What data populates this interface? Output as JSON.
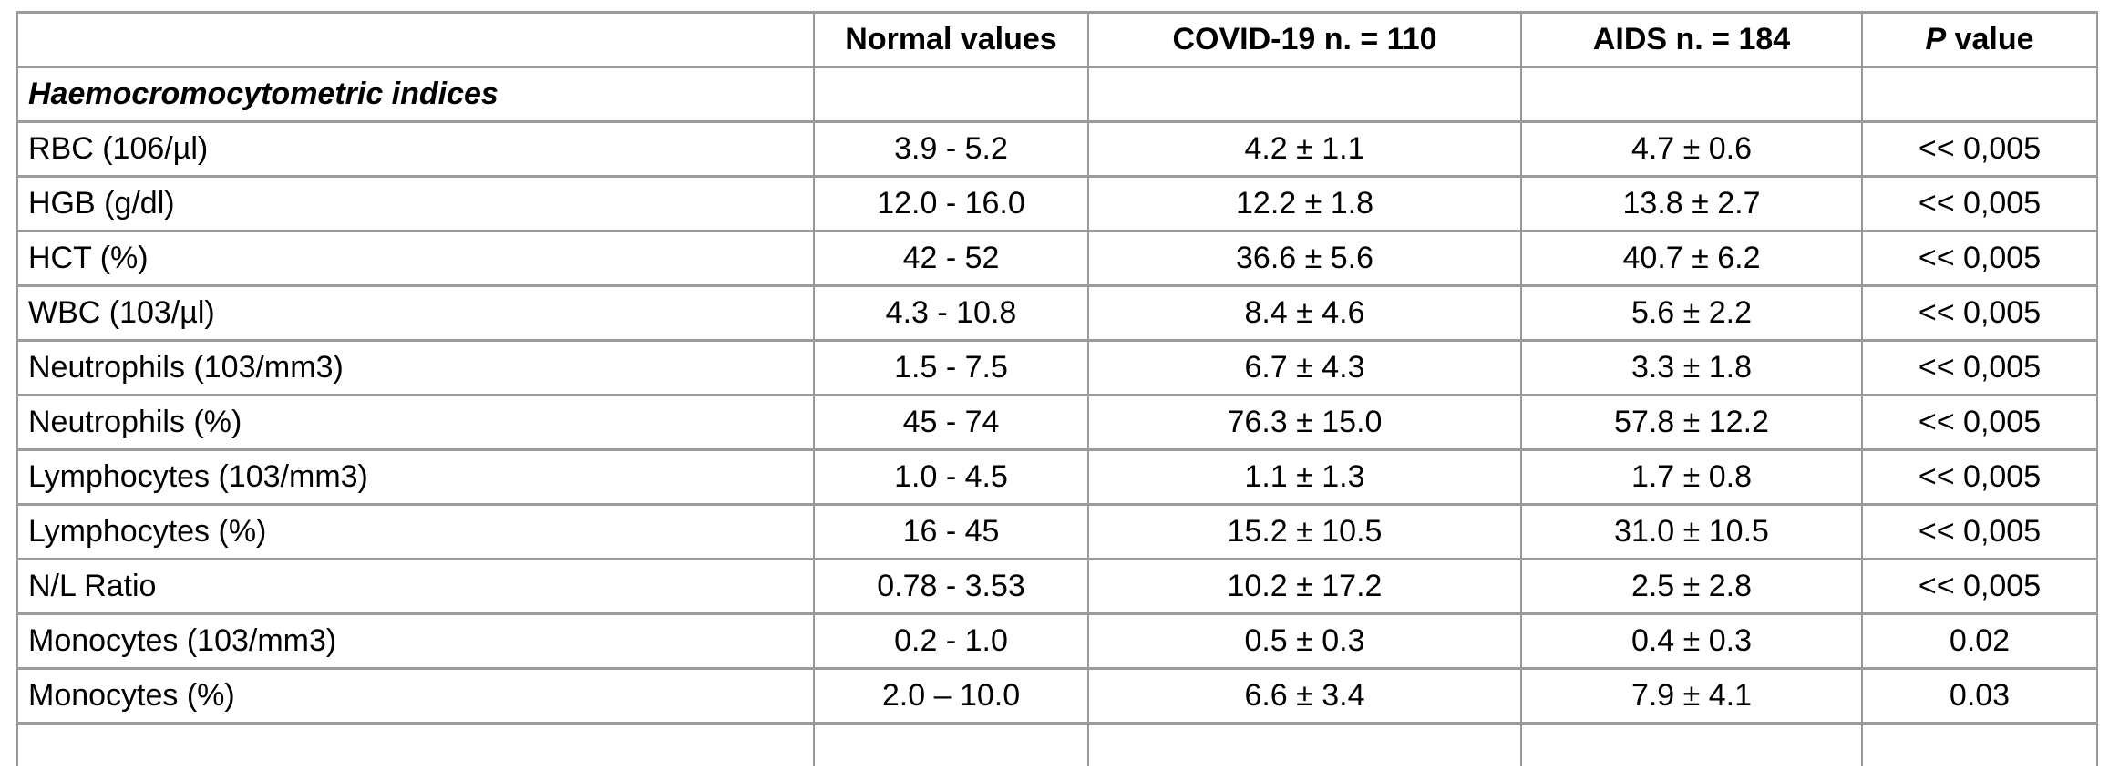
{
  "table": {
    "header": {
      "parameter": "",
      "normal_values": "Normal values",
      "covid": "COVID-19 n. = 110",
      "aids": "AIDS n. = 184",
      "p_italic": "P",
      "p_rest": " value"
    },
    "section_title": "Haemocromocytometric indices",
    "rows": [
      {
        "parameter": "RBC (106/µl)",
        "normal": "3.9 - 5.2",
        "covid": "4.2 ± 1.1",
        "aids": "4.7 ± 0.6",
        "p": "<< 0,005"
      },
      {
        "parameter": "HGB (g/dl)",
        "normal": "12.0 - 16.0",
        "covid": "12.2 ± 1.8",
        "aids": "13.8 ± 2.7",
        "p": "<< 0,005"
      },
      {
        "parameter": "HCT (%)",
        "normal": "42 - 52",
        "covid": "36.6 ± 5.6",
        "aids": "40.7 ± 6.2",
        "p": "<< 0,005"
      },
      {
        "parameter": "WBC (103/µl)",
        "normal": "4.3 - 10.8",
        "covid": "8.4 ± 4.6",
        "aids": "5.6 ± 2.2",
        "p": "<< 0,005"
      },
      {
        "parameter": "Neutrophils (103/mm3)",
        "normal": "1.5 - 7.5",
        "covid": "6.7 ± 4.3",
        "aids": "3.3 ± 1.8",
        "p": "<< 0,005"
      },
      {
        "parameter": "Neutrophils (%)",
        "normal": "45 - 74",
        "covid": "76.3 ± 15.0",
        "aids": "57.8 ± 12.2",
        "p": "<< 0,005"
      },
      {
        "parameter": "Lymphocytes (103/mm3)",
        "normal": "1.0 - 4.5",
        "covid": "1.1 ± 1.3",
        "aids": "1.7 ± 0.8",
        "p": "<< 0,005"
      },
      {
        "parameter": "Lymphocytes (%)",
        "normal": "16 - 45",
        "covid": "15.2 ± 10.5",
        "aids": "31.0 ± 10.5",
        "p": "<< 0,005"
      },
      {
        "parameter": "N/L Ratio",
        "normal": "0.78 - 3.53",
        "covid": "10.2 ± 17.2",
        "aids": "2.5 ± 2.8",
        "p": "<< 0,005"
      },
      {
        "parameter": "Monocytes (103/mm3)",
        "normal": "0.2 - 1.0",
        "covid": "0.5 ± 0.3",
        "aids": "0.4 ± 0.3",
        "p": "0.02"
      },
      {
        "parameter": "Monocytes (%)",
        "normal": "2.0 – 10.0",
        "covid": "6.6 ± 3.4",
        "aids": "7.9 ± 4.1",
        "p": "0.03"
      }
    ],
    "colors": {
      "border": "#9b9b9b",
      "text": "#000000",
      "background": "#ffffff"
    }
  }
}
